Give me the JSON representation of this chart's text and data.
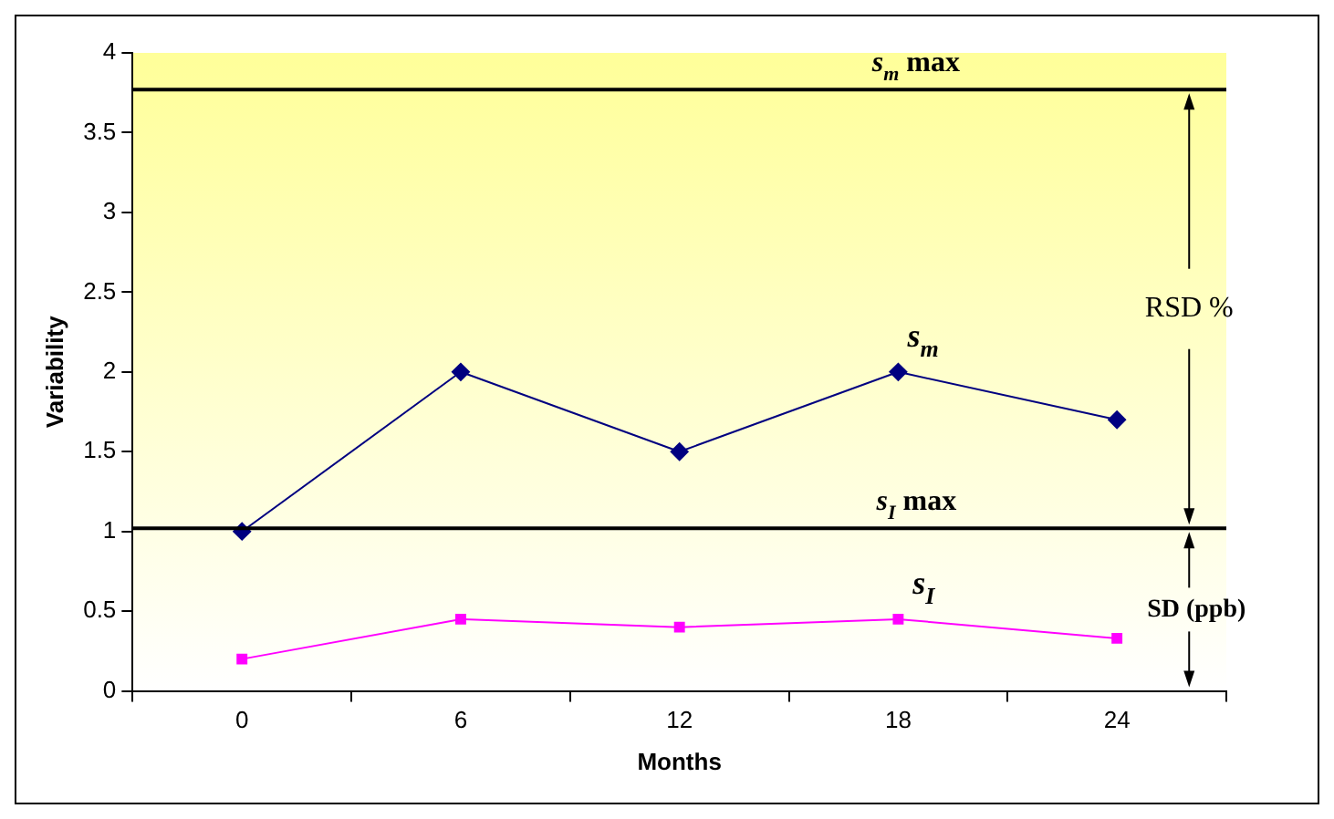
{
  "chart_data": {
    "type": "line",
    "xlabel": "Months",
    "ylabel": "Variability",
    "categories": [
      "0",
      "6",
      "12",
      "18",
      "24"
    ],
    "series": [
      {
        "name": "s$_{m}$",
        "color": "#000080",
        "marker": "diamond",
        "values": [
          1,
          2,
          1.5,
          2,
          1.7
        ]
      },
      {
        "name": "s$_{I}$",
        "color": "#ff00ff",
        "marker": "square",
        "values": [
          0.2,
          0.45,
          0.4,
          0.45,
          0.33
        ]
      }
    ],
    "ylim": [
      0,
      4
    ],
    "yticks": [
      0,
      0.5,
      1,
      1.5,
      2,
      2.5,
      3,
      3.5,
      4
    ],
    "grid": false,
    "legend": false,
    "ref_lines": [
      {
        "axis": "y",
        "value": 3.77,
        "label": "s$_{m}$ max",
        "color": "#000000"
      },
      {
        "axis": "y",
        "value": 1.02,
        "label": "s$_{I}$ max",
        "color": "#000000"
      }
    ],
    "annotations": [
      "RSD %",
      "SD (ppb)"
    ]
  }
}
